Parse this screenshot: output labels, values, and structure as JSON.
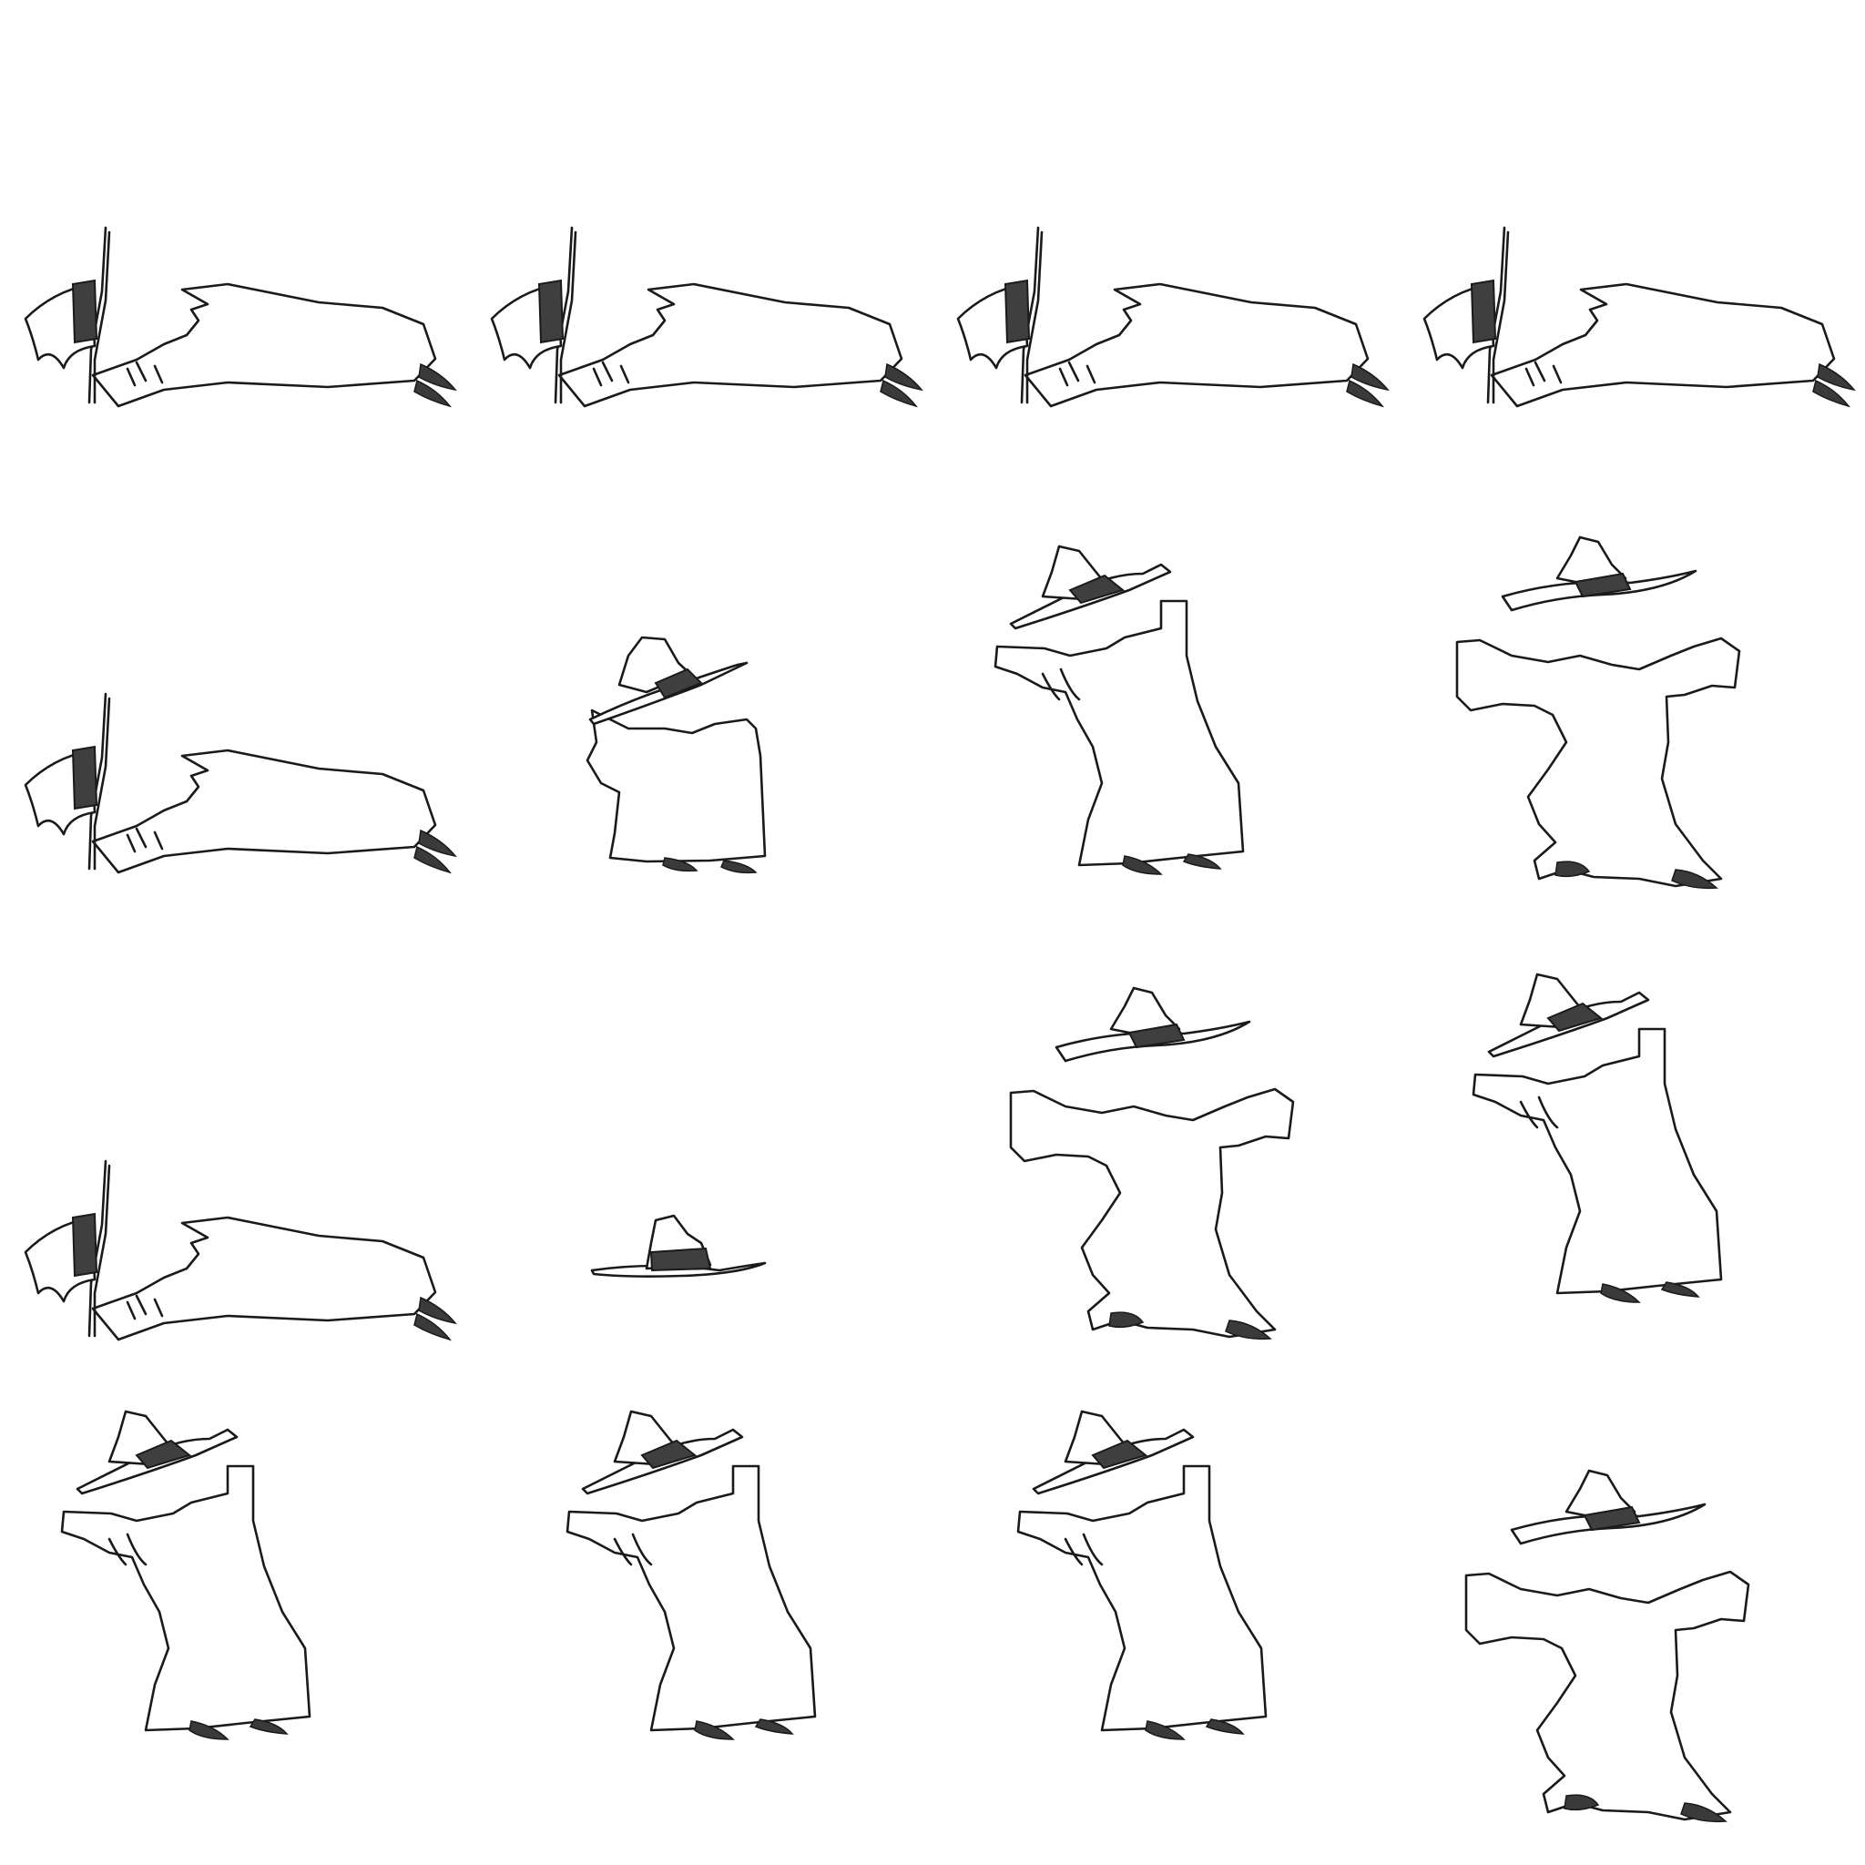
{
  "sprite_sheet": {
    "columns": 4,
    "rows": 4,
    "colors": {
      "background": "#ffffff",
      "outline": "#1a1a1a",
      "hat_band": "#3f3f3f",
      "shoe": "#3a3a3a"
    },
    "frames": [
      {
        "pose": "lying"
      },
      {
        "pose": "lying"
      },
      {
        "pose": "lying"
      },
      {
        "pose": "lying"
      },
      {
        "pose": "lying"
      },
      {
        "pose": "crouch"
      },
      {
        "pose": "lean"
      },
      {
        "pose": "arms-spread"
      },
      {
        "pose": "lying"
      },
      {
        "pose": "hat-only"
      },
      {
        "pose": "arms-spread"
      },
      {
        "pose": "lean"
      },
      {
        "pose": "lean"
      },
      {
        "pose": "lean"
      },
      {
        "pose": "lean"
      },
      {
        "pose": "arms-spread"
      }
    ]
  }
}
